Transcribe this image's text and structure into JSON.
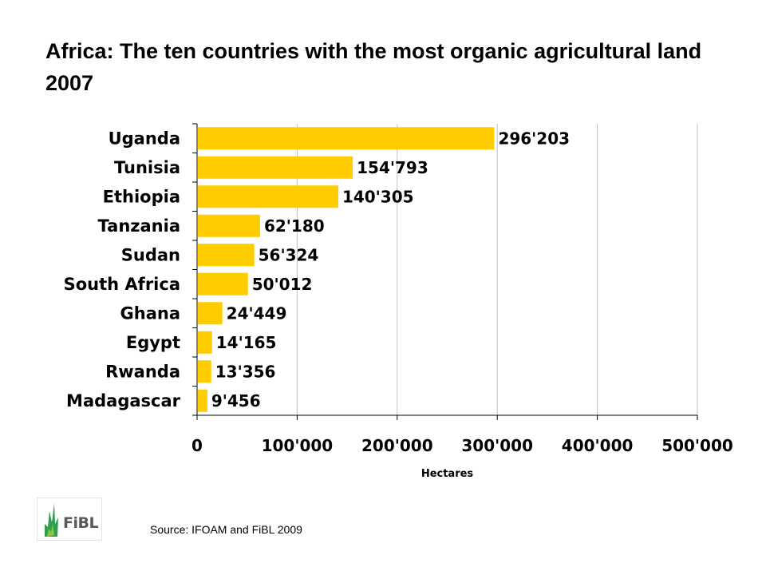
{
  "title": "Africa: The ten countries with the most organic agricultural land 2007",
  "source": "Source: IFOAM and FiBL 2009",
  "logo": {
    "text": "FiBL",
    "icon": "fibl-leaf-logo-icon"
  },
  "colors": {
    "bar": "#FFCC00",
    "gridline": "#C0C0C0",
    "axis": "#000000"
  },
  "chart_data": {
    "type": "bar",
    "orientation": "horizontal",
    "categories": [
      "Uganda",
      "Tunisia",
      "Ethiopia",
      "Tanzania",
      "Sudan",
      "South Africa",
      "Ghana",
      "Egypt",
      "Rwanda",
      "Madagascar"
    ],
    "values": [
      296203,
      154793,
      140305,
      62180,
      56324,
      50012,
      24449,
      14165,
      13356,
      9456
    ],
    "value_labels": [
      "296'203",
      "154'793",
      "140'305",
      "62'180",
      "56'324",
      "50'012",
      "24'449",
      "14'165",
      "13'356",
      "9'456"
    ],
    "x_ticks": [
      0,
      100000,
      200000,
      300000,
      400000,
      500000
    ],
    "x_tick_labels": [
      "0",
      "100'000",
      "200'000",
      "300'000",
      "400'000",
      "500'000"
    ],
    "xlim": [
      0,
      500000
    ],
    "xlabel": "Hectares",
    "ylabel": "",
    "grid": "vertical",
    "legend": "none"
  }
}
